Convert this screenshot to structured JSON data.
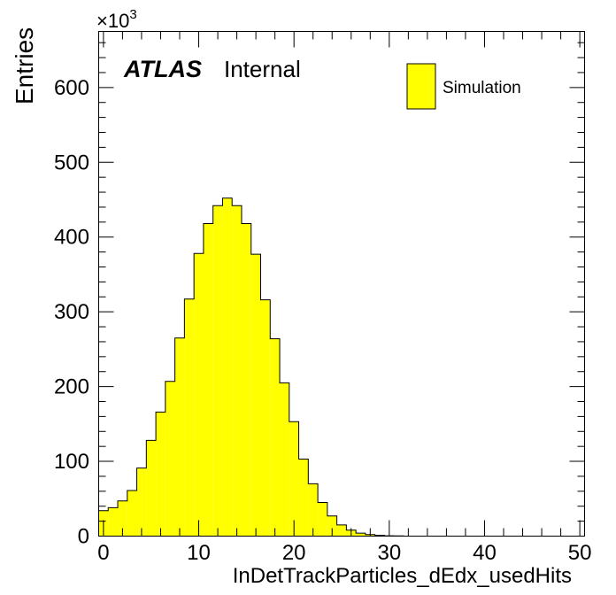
{
  "chart_data": {
    "type": "bar",
    "xlabel": "InDetTrackParticles_dEdx_usedHits",
    "ylabel": "Entries",
    "y_multiplier": "×10",
    "y_multiplier_exponent": "3",
    "xlim": [
      -0.5,
      50.5
    ],
    "ylim": [
      0,
      675
    ],
    "x_ticks": [
      "0",
      "10",
      "20",
      "30",
      "40",
      "50"
    ],
    "y_ticks": [
      "0",
      "100",
      "200",
      "300",
      "400",
      "500",
      "600"
    ],
    "bin_width": 1,
    "series": [
      {
        "name": "Simulation",
        "color": "#ffff00",
        "x": [
          0,
          1,
          2,
          3,
          4,
          5,
          6,
          7,
          8,
          9,
          10,
          11,
          12,
          13,
          14,
          15,
          16,
          17,
          18,
          19,
          20,
          21,
          22,
          23,
          24,
          25,
          26,
          27,
          28,
          29,
          30,
          31,
          32,
          33,
          34,
          35,
          36,
          37,
          38,
          39,
          40,
          41,
          42,
          43,
          44,
          45,
          46,
          47,
          48,
          49,
          50
        ],
        "values": [
          34,
          38,
          47,
          61,
          91,
          128,
          166,
          207,
          265,
          317,
          378,
          418,
          442,
          452,
          442,
          418,
          377,
          316,
          264,
          205,
          153,
          103,
          70,
          45,
          27,
          15,
          8,
          4,
          2,
          1,
          0.5,
          0.3,
          0,
          0,
          0,
          0,
          0,
          0,
          0,
          0,
          0,
          0,
          0,
          0,
          0,
          0,
          0,
          0,
          0,
          0,
          0
        ]
      }
    ],
    "legend": "top-right",
    "grid": false
  },
  "label": {
    "experiment": "ATLAS",
    "status": "Internal"
  }
}
